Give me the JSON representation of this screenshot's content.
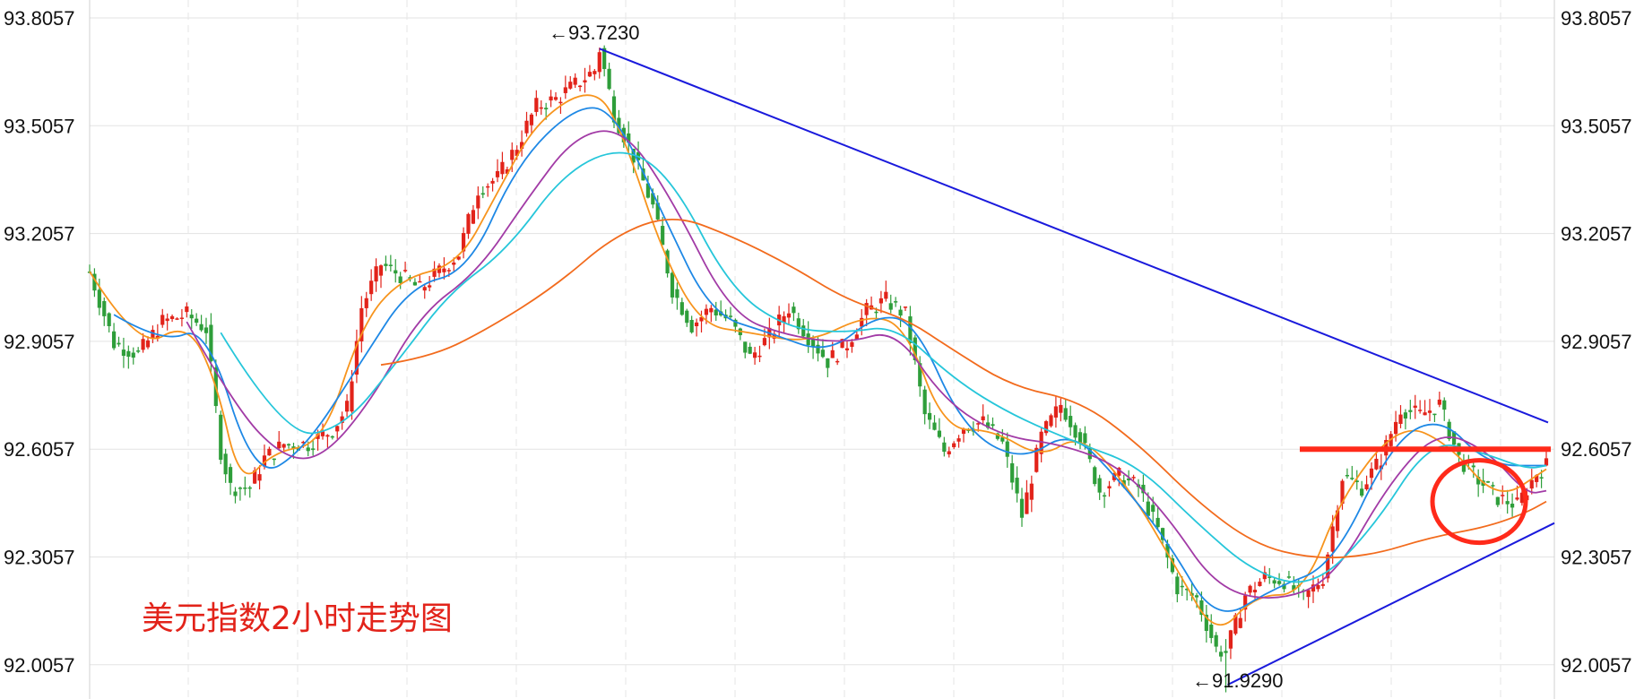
{
  "chart_data": {
    "type": "candlestick",
    "title": "美元指数2小时走势图",
    "xlabel": "",
    "ylabel": "",
    "ylim": [
      91.9,
      93.8057
    ],
    "y_ticks": [
      "93.8057",
      "93.5057",
      "93.2057",
      "92.9057",
      "92.6057",
      "92.3057",
      "92.0057"
    ],
    "y_tick_values": [
      93.8057,
      93.5057,
      93.2057,
      92.9057,
      92.6057,
      92.3057,
      92.0057
    ],
    "grid": true,
    "annotations": {
      "high_label": "←93.7230",
      "high_value": 93.723,
      "low_label": "←91.9290",
      "low_value": 91.929,
      "support_level": 92.6057
    },
    "colors": {
      "up": "#e2231a",
      "down": "#2e9e3a",
      "ma1": "#f7941d",
      "ma2": "#1e88e5",
      "ma3": "#a23ba6",
      "ma4": "#26c6da",
      "ma5": "#f26b1d",
      "trendline": "#1a1adc",
      "highlight": "#ff2a1a"
    },
    "price_path": [
      [
        0,
        93.1
      ],
      [
        5,
        92.9
      ],
      [
        10,
        92.87
      ],
      [
        15,
        92.96
      ],
      [
        20,
        92.98
      ],
      [
        24,
        92.94
      ],
      [
        27,
        92.6
      ],
      [
        29,
        92.5
      ],
      [
        33,
        92.5
      ],
      [
        36,
        92.58
      ],
      [
        40,
        92.62
      ],
      [
        45,
        92.62
      ],
      [
        50,
        92.66
      ],
      [
        53,
        92.72
      ],
      [
        56,
        93.0
      ],
      [
        60,
        93.12
      ],
      [
        64,
        93.09
      ],
      [
        68,
        93.05
      ],
      [
        72,
        93.1
      ],
      [
        76,
        93.15
      ],
      [
        80,
        93.33
      ],
      [
        84,
        93.36
      ],
      [
        88,
        93.45
      ],
      [
        92,
        93.56
      ],
      [
        96,
        93.58
      ],
      [
        100,
        93.62
      ],
      [
        104,
        93.66
      ],
      [
        105,
        93.72
      ],
      [
        108,
        93.54
      ],
      [
        112,
        93.42
      ],
      [
        116,
        93.28
      ],
      [
        120,
        93.05
      ],
      [
        124,
        92.95
      ],
      [
        128,
        93.0
      ],
      [
        132,
        92.96
      ],
      [
        136,
        92.86
      ],
      [
        140,
        92.92
      ],
      [
        144,
        93.0
      ],
      [
        148,
        92.92
      ],
      [
        152,
        92.85
      ],
      [
        156,
        92.9
      ],
      [
        160,
        92.99
      ],
      [
        164,
        93.02
      ],
      [
        168,
        92.98
      ],
      [
        172,
        92.7
      ],
      [
        176,
        92.6
      ],
      [
        180,
        92.67
      ],
      [
        184,
        92.68
      ],
      [
        188,
        92.62
      ],
      [
        192,
        92.42
      ],
      [
        196,
        92.64
      ],
      [
        200,
        92.73
      ],
      [
        204,
        92.64
      ],
      [
        208,
        92.49
      ],
      [
        212,
        92.53
      ],
      [
        216,
        92.5
      ],
      [
        220,
        92.38
      ],
      [
        224,
        92.22
      ],
      [
        228,
        92.19
      ],
      [
        232,
        92.05
      ],
      [
        234,
        92.04
      ],
      [
        238,
        92.2
      ],
      [
        242,
        92.25
      ],
      [
        246,
        92.24
      ],
      [
        250,
        92.19
      ],
      [
        254,
        92.25
      ],
      [
        258,
        92.53
      ],
      [
        262,
        92.5
      ],
      [
        266,
        92.58
      ],
      [
        270,
        92.72
      ],
      [
        274,
        92.7
      ],
      [
        278,
        92.73
      ],
      [
        282,
        92.58
      ],
      [
        286,
        92.52
      ],
      [
        290,
        92.47
      ],
      [
        294,
        92.45
      ],
      [
        298,
        92.54
      ],
      [
        300,
        92.56
      ]
    ],
    "moving_averages": [
      {
        "color_key": "ma1",
        "path": [
          [
            0,
            93.1
          ],
          [
            10,
            92.88
          ],
          [
            20,
            92.96
          ],
          [
            26,
            92.8
          ],
          [
            31,
            92.5
          ],
          [
            38,
            92.6
          ],
          [
            48,
            92.62
          ],
          [
            56,
            92.95
          ],
          [
            64,
            93.08
          ],
          [
            76,
            93.12
          ],
          [
            84,
            93.32
          ],
          [
            92,
            93.52
          ],
          [
            104,
            93.62
          ],
          [
            110,
            93.48
          ],
          [
            118,
            93.15
          ],
          [
            126,
            92.95
          ],
          [
            136,
            92.93
          ],
          [
            148,
            92.9
          ],
          [
            160,
            92.98
          ],
          [
            168,
            92.95
          ],
          [
            176,
            92.66
          ],
          [
            186,
            92.66
          ],
          [
            196,
            92.58
          ],
          [
            204,
            92.65
          ],
          [
            214,
            92.5
          ],
          [
            224,
            92.27
          ],
          [
            232,
            92.08
          ],
          [
            240,
            92.2
          ],
          [
            250,
            92.2
          ],
          [
            258,
            92.48
          ],
          [
            270,
            92.68
          ],
          [
            280,
            92.62
          ],
          [
            290,
            92.46
          ],
          [
            300,
            92.55
          ]
        ]
      },
      {
        "color_key": "ma2",
        "path": [
          [
            5,
            92.98
          ],
          [
            15,
            92.9
          ],
          [
            24,
            92.95
          ],
          [
            34,
            92.52
          ],
          [
            44,
            92.6
          ],
          [
            56,
            92.85
          ],
          [
            66,
            93.06
          ],
          [
            78,
            93.1
          ],
          [
            88,
            93.4
          ],
          [
            100,
            93.56
          ],
          [
            108,
            93.55
          ],
          [
            118,
            93.26
          ],
          [
            128,
            92.98
          ],
          [
            140,
            92.93
          ],
          [
            152,
            92.87
          ],
          [
            162,
            92.98
          ],
          [
            170,
            92.96
          ],
          [
            180,
            92.66
          ],
          [
            192,
            92.57
          ],
          [
            202,
            92.66
          ],
          [
            212,
            92.52
          ],
          [
            222,
            92.35
          ],
          [
            232,
            92.12
          ],
          [
            244,
            92.22
          ],
          [
            256,
            92.28
          ],
          [
            268,
            92.62
          ],
          [
            278,
            92.7
          ],
          [
            288,
            92.56
          ],
          [
            300,
            92.56
          ]
        ]
      },
      {
        "color_key": "ma3",
        "path": [
          [
            20,
            92.96
          ],
          [
            30,
            92.72
          ],
          [
            40,
            92.58
          ],
          [
            48,
            92.58
          ],
          [
            58,
            92.74
          ],
          [
            68,
            92.98
          ],
          [
            80,
            93.1
          ],
          [
            90,
            93.3
          ],
          [
            100,
            93.48
          ],
          [
            110,
            93.5
          ],
          [
            120,
            93.3
          ],
          [
            132,
            92.98
          ],
          [
            144,
            92.92
          ],
          [
            156,
            92.9
          ],
          [
            166,
            92.94
          ],
          [
            176,
            92.74
          ],
          [
            188,
            92.64
          ],
          [
            200,
            92.62
          ],
          [
            212,
            92.56
          ],
          [
            222,
            92.42
          ],
          [
            232,
            92.22
          ],
          [
            244,
            92.18
          ],
          [
            256,
            92.24
          ],
          [
            268,
            92.52
          ],
          [
            278,
            92.66
          ],
          [
            288,
            92.6
          ],
          [
            296,
            92.48
          ],
          [
            300,
            92.49
          ]
        ]
      },
      {
        "color_key": "ma4",
        "path": [
          [
            27,
            92.93
          ],
          [
            40,
            92.64
          ],
          [
            52,
            92.66
          ],
          [
            64,
            92.86
          ],
          [
            74,
            93.04
          ],
          [
            86,
            93.16
          ],
          [
            98,
            93.38
          ],
          [
            110,
            93.45
          ],
          [
            120,
            93.36
          ],
          [
            132,
            93.05
          ],
          [
            144,
            92.94
          ],
          [
            156,
            92.93
          ],
          [
            166,
            92.95
          ],
          [
            178,
            92.8
          ],
          [
            190,
            92.7
          ],
          [
            204,
            92.62
          ],
          [
            216,
            92.56
          ],
          [
            228,
            92.4
          ],
          [
            240,
            92.26
          ],
          [
            252,
            92.22
          ],
          [
            264,
            92.38
          ],
          [
            276,
            92.63
          ],
          [
            286,
            92.6
          ],
          [
            296,
            92.55
          ],
          [
            300,
            92.56
          ]
        ]
      },
      {
        "color_key": "ma5",
        "path": [
          [
            60,
            92.84
          ],
          [
            70,
            92.86
          ],
          [
            82,
            92.94
          ],
          [
            96,
            93.06
          ],
          [
            108,
            93.2
          ],
          [
            120,
            93.26
          ],
          [
            132,
            93.2
          ],
          [
            144,
            93.12
          ],
          [
            156,
            93.02
          ],
          [
            168,
            92.97
          ],
          [
            178,
            92.88
          ],
          [
            190,
            92.78
          ],
          [
            204,
            92.74
          ],
          [
            216,
            92.62
          ],
          [
            228,
            92.46
          ],
          [
            240,
            92.34
          ],
          [
            252,
            92.3
          ],
          [
            264,
            92.31
          ],
          [
            276,
            92.36
          ],
          [
            288,
            92.39
          ],
          [
            296,
            92.43
          ],
          [
            300,
            92.46
          ]
        ]
      }
    ]
  }
}
